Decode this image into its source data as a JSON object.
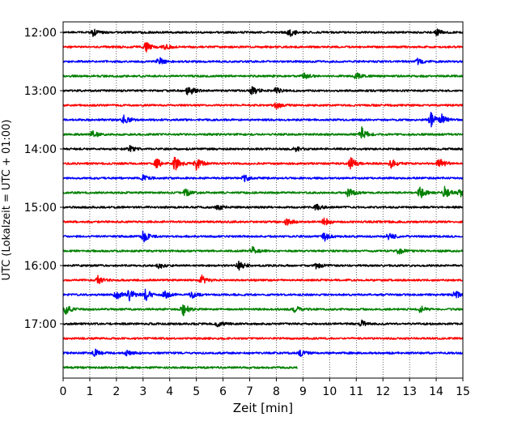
{
  "chart_data": {
    "type": "line",
    "chart_kind": "helicorder",
    "xlabel": "Zeit  [min]",
    "ylabel": "UTC (Lokalzeit = UTC + 01:00)",
    "xlim": [
      0,
      15
    ],
    "x_ticks": [
      "0",
      "1",
      "2",
      "3",
      "4",
      "5",
      "6",
      "7",
      "8",
      "9",
      "10",
      "11",
      "12",
      "13",
      "14",
      "15"
    ],
    "y_tick_labels": [
      {
        "row": 0,
        "label": "12:00"
      },
      {
        "row": 4,
        "label": "13:00"
      },
      {
        "row": 8,
        "label": "14:00"
      },
      {
        "row": 12,
        "label": "15:00"
      },
      {
        "row": 16,
        "label": "16:00"
      },
      {
        "row": 20,
        "label": "17:00"
      }
    ],
    "grid": "vertical-dotted",
    "colors": [
      "#000000",
      "#ff0000",
      "#0000ff",
      "#008000"
    ],
    "traces": [
      {
        "start": "12:00",
        "end_min": 15,
        "color": "#000000",
        "events": [
          [
            1.1,
            0.4
          ],
          [
            8.5,
            0.5
          ],
          [
            14.0,
            0.35
          ]
        ]
      },
      {
        "start": "12:15",
        "end_min": 15,
        "color": "#ff0000",
        "events": [
          [
            3.1,
            0.5
          ],
          [
            3.8,
            0.3
          ]
        ]
      },
      {
        "start": "12:30",
        "end_min": 15,
        "color": "#0000ff",
        "events": [
          [
            3.6,
            0.4
          ],
          [
            13.3,
            0.3
          ]
        ]
      },
      {
        "start": "12:45",
        "end_min": 15,
        "color": "#008000",
        "events": [
          [
            9.0,
            0.4
          ],
          [
            11.0,
            0.3
          ]
        ]
      },
      {
        "start": "13:00",
        "end_min": 15,
        "color": "#000000",
        "events": [
          [
            4.7,
            0.6
          ],
          [
            7.1,
            0.5
          ],
          [
            8.0,
            0.3
          ]
        ]
      },
      {
        "start": "13:15",
        "end_min": 15,
        "color": "#ff0000",
        "events": [
          [
            8.0,
            0.35
          ]
        ]
      },
      {
        "start": "13:30",
        "end_min": 15,
        "color": "#0000ff",
        "events": [
          [
            2.3,
            0.5
          ],
          [
            13.8,
            0.7
          ],
          [
            14.2,
            0.5
          ]
        ]
      },
      {
        "start": "13:45",
        "end_min": 15,
        "color": "#008000",
        "events": [
          [
            1.1,
            0.4
          ],
          [
            11.2,
            0.7
          ]
        ]
      },
      {
        "start": "14:00",
        "end_min": 15,
        "color": "#000000",
        "events": [
          [
            2.5,
            0.3
          ],
          [
            8.7,
            0.3
          ]
        ]
      },
      {
        "start": "14:15",
        "end_min": 15,
        "color": "#ff0000",
        "events": [
          [
            3.5,
            0.5
          ],
          [
            4.2,
            0.7
          ],
          [
            5.0,
            0.7
          ],
          [
            10.8,
            0.6
          ],
          [
            12.3,
            0.5
          ],
          [
            14.1,
            0.6
          ]
        ]
      },
      {
        "start": "14:30",
        "end_min": 15,
        "color": "#0000ff",
        "events": [
          [
            3.0,
            0.3
          ],
          [
            6.8,
            0.35
          ]
        ]
      },
      {
        "start": "14:45",
        "end_min": 15,
        "color": "#008000",
        "events": [
          [
            4.6,
            0.4
          ],
          [
            10.7,
            0.6
          ],
          [
            13.4,
            0.6
          ],
          [
            14.3,
            0.6
          ],
          [
            14.9,
            0.5
          ]
        ]
      },
      {
        "start": "15:00",
        "end_min": 15,
        "color": "#000000",
        "events": [
          [
            5.8,
            0.3
          ],
          [
            9.5,
            0.3
          ]
        ]
      },
      {
        "start": "15:15",
        "end_min": 15,
        "color": "#ff0000",
        "events": [
          [
            8.4,
            0.35
          ],
          [
            9.8,
            0.45
          ]
        ]
      },
      {
        "start": "15:30",
        "end_min": 15,
        "color": "#0000ff",
        "events": [
          [
            3.0,
            0.6
          ],
          [
            9.8,
            0.45
          ],
          [
            12.2,
            0.4
          ]
        ]
      },
      {
        "start": "15:45",
        "end_min": 15,
        "color": "#008000",
        "events": [
          [
            7.1,
            0.4
          ],
          [
            12.6,
            0.3
          ]
        ]
      },
      {
        "start": "16:00",
        "end_min": 15,
        "color": "#000000",
        "events": [
          [
            3.6,
            0.3
          ],
          [
            6.6,
            0.45
          ],
          [
            9.5,
            0.3
          ]
        ]
      },
      {
        "start": "16:15",
        "end_min": 15,
        "color": "#ff0000",
        "events": [
          [
            1.3,
            0.4
          ],
          [
            5.2,
            0.5
          ]
        ]
      },
      {
        "start": "16:30",
        "end_min": 15,
        "color": "#0000ff",
        "events": [
          [
            2.0,
            0.5
          ],
          [
            2.5,
            0.6
          ],
          [
            3.1,
            0.6
          ],
          [
            3.8,
            0.5
          ],
          [
            4.8,
            0.4
          ],
          [
            14.7,
            0.45
          ]
        ]
      },
      {
        "start": "16:45",
        "end_min": 15,
        "color": "#008000",
        "events": [
          [
            0.1,
            0.5
          ],
          [
            4.5,
            0.7
          ],
          [
            8.7,
            0.35
          ],
          [
            13.4,
            0.35
          ]
        ]
      },
      {
        "start": "17:00",
        "end_min": 15,
        "color": "#000000",
        "events": [
          [
            5.8,
            0.3
          ],
          [
            11.2,
            0.3
          ]
        ]
      },
      {
        "start": "17:15",
        "end_min": 15,
        "color": "#ff0000",
        "events": []
      },
      {
        "start": "17:30",
        "end_min": 15,
        "color": "#0000ff",
        "events": [
          [
            1.2,
            0.35
          ],
          [
            2.4,
            0.3
          ],
          [
            8.9,
            0.3
          ]
        ]
      },
      {
        "start": "17:45",
        "end_min": 8.8,
        "color": "#008000",
        "events": []
      }
    ]
  }
}
